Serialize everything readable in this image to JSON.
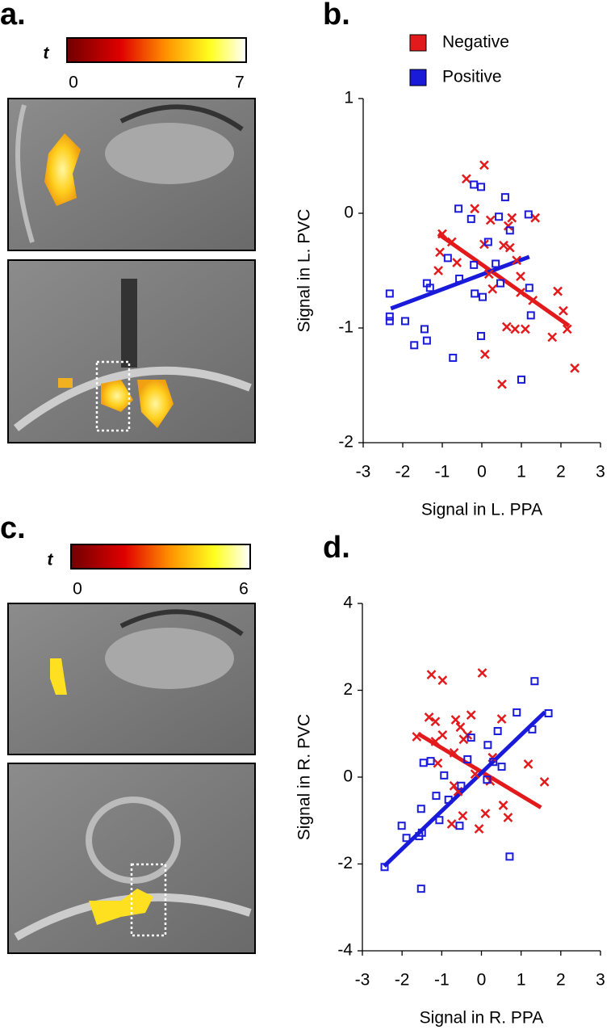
{
  "panel_labels": [
    "a.",
    "b.",
    "c.",
    "d."
  ],
  "colorbars": [
    {
      "label": "t",
      "ticks": [
        0,
        7
      ]
    },
    {
      "label": "t",
      "ticks": [
        0,
        6
      ]
    }
  ],
  "chart_data": [
    {
      "type": "scatter",
      "xlabel": "Signal in L. PPA",
      "ylabel": "Signal in L. PVC",
      "xlim": [
        -3,
        3
      ],
      "xticks": [
        -3,
        -2,
        -1,
        0,
        1,
        2,
        3
      ],
      "ylim": [
        -2,
        1
      ],
      "yticks": [
        -2,
        -1,
        0,
        1
      ],
      "legend": "top",
      "series": [
        {
          "name": "Negative",
          "color": "#e31a1c",
          "marker": "x",
          "x": [
            -1.06,
            -1.1,
            -1.0,
            -0.76,
            -0.63,
            -0.39,
            -0.18,
            0.06,
            0.22,
            0.06,
            0.18,
            0.27,
            0.08,
            0.55,
            0.67,
            0.76,
            1.35,
            0.71,
            0.88,
            0.98,
            0.98,
            0.63,
            0.84,
            1.1,
            1.29,
            1.92,
            2.06,
            2.16,
            1.78,
            2.35,
            0.51
          ],
          "values": [
            -0.34,
            -0.5,
            -0.18,
            -0.25,
            -0.43,
            0.3,
            0.04,
            0.42,
            -0.06,
            -0.27,
            -0.53,
            -0.66,
            -1.23,
            -0.28,
            -0.11,
            -0.04,
            -0.04,
            -0.3,
            -0.41,
            -0.55,
            -0.69,
            -0.99,
            -1.01,
            -1.01,
            -0.76,
            -0.68,
            -0.85,
            -1.01,
            -1.08,
            -1.35,
            -1.49
          ]
        },
        {
          "name": "Positive",
          "color": "#1a1adb",
          "marker": "square",
          "x": [
            -2.33,
            -2.33,
            -2.33,
            -1.94,
            -1.71,
            -1.45,
            -1.39,
            -1.39,
            -1.31,
            -0.73,
            -0.27,
            -0.59,
            -0.86,
            -0.57,
            -0.2,
            -0.02,
            -0.2,
            -0.18,
            0.02,
            -0.02,
            0.16,
            0.35,
            0.43,
            0.47,
            0.59,
            0.71,
            1.0,
            1.2,
            1.18,
            1.24
          ],
          "values": [
            -0.9,
            -0.7,
            -0.94,
            -0.94,
            -1.15,
            -1.01,
            -1.11,
            -0.61,
            -0.65,
            -1.26,
            -0.05,
            0.04,
            -0.39,
            -0.57,
            0.25,
            0.23,
            -0.45,
            -0.7,
            -0.73,
            -1.07,
            -0.25,
            -0.44,
            -0.03,
            -0.61,
            0.14,
            -0.15,
            -1.45,
            -0.65,
            -0.01,
            -0.89
          ]
        }
      ],
      "fits": [
        {
          "color": "#e31a1c",
          "x": [
            -1.1,
            2.2
          ],
          "values": [
            -0.18,
            -0.98
          ]
        },
        {
          "color": "#1a1adb",
          "x": [
            -2.3,
            1.2
          ],
          "values": [
            -0.83,
            -0.38
          ]
        }
      ]
    },
    {
      "type": "scatter",
      "xlabel": "Signal in R. PPA",
      "ylabel": "Signal in R. PVC",
      "xlim": [
        -3,
        3
      ],
      "xticks": [
        -3,
        -2,
        -1,
        0,
        1,
        2,
        3
      ],
      "ylim": [
        -4,
        4
      ],
      "yticks": [
        -4,
        -2,
        0,
        2,
        4
      ],
      "series": [
        {
          "color": "#e31a1c",
          "marker": "x",
          "x": [
            -1.26,
            -0.98,
            0.02,
            -1.63,
            -1.32,
            -1.16,
            -0.98,
            -0.65,
            -0.53,
            -0.45,
            -0.35,
            -0.26,
            -1.16,
            -1.1,
            -0.69,
            -0.69,
            -0.59,
            -0.47,
            -0.75,
            -0.16,
            -0.06,
            0.1,
            0.28,
            0.51,
            0.22,
            0.55,
            0.67,
            1.18,
            1.59
          ],
          "values": [
            2.36,
            2.23,
            2.4,
            0.93,
            1.38,
            1.28,
            0.97,
            1.32,
            1.15,
            0.87,
            0.97,
            1.43,
            0.82,
            0.32,
            0.56,
            -0.2,
            -0.33,
            -0.89,
            -1.08,
            0.07,
            -1.19,
            -0.84,
            0.45,
            1.34,
            -0.09,
            -0.65,
            -0.93,
            0.3,
            -0.11
          ]
        },
        {
          "color": "#1a1adb",
          "marker": "square",
          "x": [
            -2.44,
            -2.01,
            -1.89,
            -1.57,
            -1.52,
            -1.5,
            -1.52,
            -1.46,
            -1.28,
            -1.14,
            -1.06,
            -0.94,
            -0.83,
            -0.55,
            -0.51,
            -0.35,
            -0.26,
            0.14,
            0.16,
            0.3,
            0.41,
            0.51,
            0.71,
            0.89,
            1.28,
            1.34,
            1.69
          ],
          "values": [
            -2.07,
            -1.12,
            -1.4,
            -1.36,
            -0.73,
            -1.28,
            -2.57,
            0.33,
            0.37,
            -0.43,
            -0.99,
            0.04,
            -0.52,
            -1.12,
            -0.2,
            0.41,
            0.91,
            -0.06,
            0.74,
            0.35,
            1.06,
            0.24,
            -1.83,
            1.49,
            1.1,
            2.21,
            1.47
          ]
        }
      ],
      "fits": [
        {
          "color": "#e31a1c",
          "x": [
            -1.6,
            1.5
          ],
          "values": [
            1.0,
            -0.7
          ]
        },
        {
          "color": "#1a1adb",
          "x": [
            -2.45,
            1.6
          ],
          "values": [
            -2.05,
            1.5
          ]
        }
      ]
    }
  ]
}
